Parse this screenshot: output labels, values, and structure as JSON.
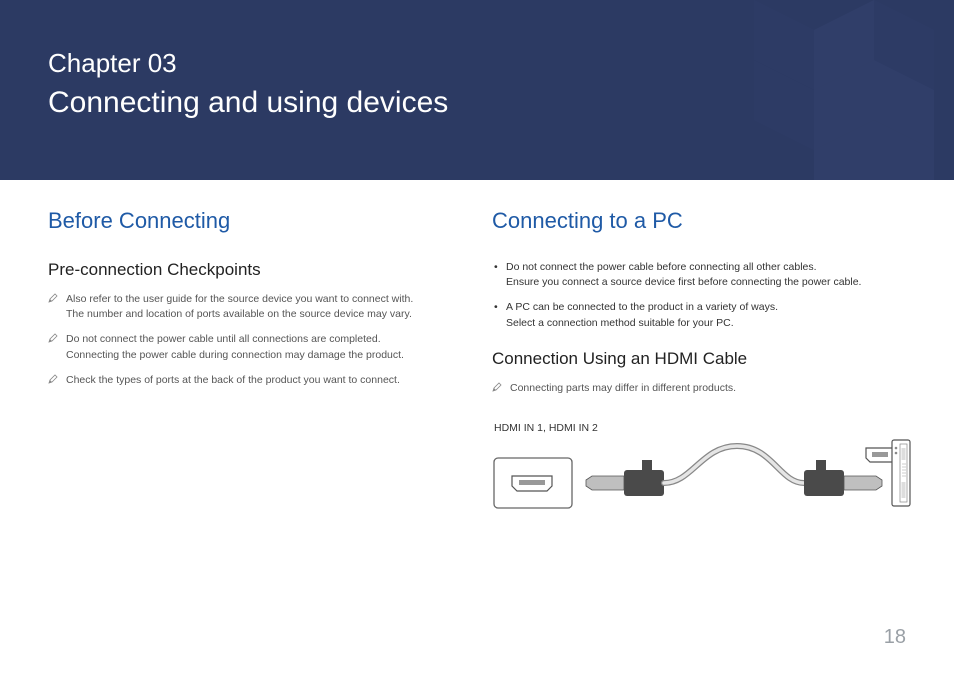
{
  "header": {
    "chapter_label": "Chapter  03",
    "chapter_title": "Connecting and using devices",
    "bg_color": "#2c3a63"
  },
  "left": {
    "section_title": "Before Connecting",
    "subsection_title": "Pre-connection Checkpoints",
    "items": [
      "Also refer to the user guide for the source device you want to connect with.\nThe number and location of ports available on the source device may vary.",
      "Do not connect the power cable until all connections are completed.\nConnecting the power cable during connection may damage the product.",
      "Check the types of ports at the back of the product you want to connect."
    ]
  },
  "right": {
    "section_title": "Connecting to a PC",
    "bullets": [
      "Do not connect the power cable before connecting all other cables.\nEnsure you connect a source device first before connecting the power cable.",
      "A PC can be connected to the product in a variety of ways.\nSelect a connection method suitable for your PC."
    ],
    "subsection_title": "Connection Using an HDMI Cable",
    "note": "Connecting parts may differ in different products.",
    "diagram_label": "HDMI IN 1, HDMI IN 2"
  },
  "page_number": "18",
  "colors": {
    "heading_blue": "#1f5aa6",
    "body_gray": "#555555",
    "page_num_gray": "#9aa0a6"
  }
}
